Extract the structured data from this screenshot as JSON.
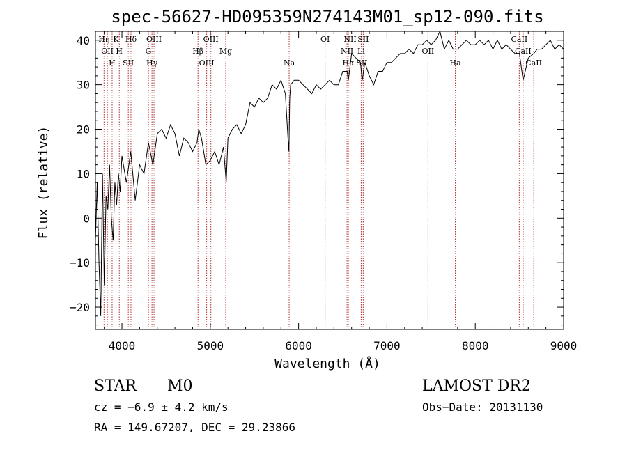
{
  "chart_data": {
    "type": "line",
    "title": "spec-56627-HD095359N274143M01_sp12-090.fits",
    "xlabel": "Wavelength (Å)",
    "ylabel": "Flux (relative)",
    "xlim": [
      3700,
      9000
    ],
    "ylim": [
      -25,
      42
    ],
    "x_ticks": [
      4000,
      5000,
      6000,
      7000,
      8000,
      9000
    ],
    "y_ticks": [
      -20,
      -10,
      0,
      10,
      20,
      30,
      40
    ],
    "x_tick_labels": [
      "4000",
      "5000",
      "6000",
      "7000",
      "8000",
      "9000"
    ],
    "y_tick_labels": [
      "−20",
      "−10",
      "0",
      "10",
      "20",
      "30",
      "40"
    ],
    "grid": false,
    "line_color": "#000000",
    "marker_color": "#b03030",
    "series": [
      {
        "x": [
          3700,
          3720,
          3740,
          3760,
          3780,
          3800,
          3820,
          3840,
          3860,
          3880,
          3900,
          3920,
          3940,
          3960,
          3980,
          4000,
          4050,
          4100,
          4150,
          4200,
          4250,
          4300,
          4350,
          4400,
          4450,
          4500,
          4550,
          4600,
          4650,
          4700,
          4750,
          4800,
          4850,
          4870,
          4900,
          4950,
          5000,
          5050,
          5100,
          5150,
          5180,
          5200,
          5250,
          5300,
          5350,
          5400,
          5450,
          5500,
          5550,
          5600,
          5650,
          5700,
          5750,
          5800,
          5850,
          5880,
          5890,
          5900,
          5910,
          5950,
          6000,
          6050,
          6100,
          6150,
          6200,
          6250,
          6300,
          6350,
          6400,
          6450,
          6500,
          6550,
          6563,
          6600,
          6650,
          6700,
          6720,
          6750,
          6800,
          6850,
          6900,
          6950,
          7000,
          7050,
          7100,
          7150,
          7200,
          7250,
          7300,
          7350,
          7400,
          7450,
          7500,
          7550,
          7600,
          7650,
          7700,
          7750,
          7800,
          7850,
          7900,
          7950,
          8000,
          8050,
          8100,
          8150,
          8200,
          8250,
          8300,
          8350,
          8400,
          8450,
          8500,
          8542,
          8600,
          8662,
          8700,
          8750,
          8800,
          8850,
          8900,
          8950,
          9000
        ],
        "y": [
          -5,
          8,
          -10,
          -22,
          10,
          -15,
          5,
          2,
          12,
          0,
          -5,
          8,
          3,
          10,
          6,
          14,
          8,
          15,
          4,
          12,
          10,
          17,
          12,
          19,
          20,
          18,
          21,
          19,
          14,
          18,
          17,
          15,
          17,
          20,
          18,
          12,
          13,
          15,
          12,
          16,
          8,
          18,
          20,
          21,
          19,
          21,
          26,
          25,
          27,
          26,
          27,
          30,
          29,
          31,
          28,
          18,
          15,
          27,
          30,
          31,
          31,
          30,
          29,
          28,
          30,
          29,
          30,
          31,
          30,
          30,
          33,
          33,
          31,
          37,
          36,
          35,
          31,
          35,
          32,
          30,
          33,
          33,
          35,
          35,
          36,
          37,
          37,
          38,
          37,
          39,
          39,
          40,
          39,
          40,
          42,
          38,
          40,
          38,
          38,
          39,
          40,
          39,
          39,
          40,
          39,
          40,
          38,
          40,
          38,
          39,
          38,
          37,
          37,
          31,
          36,
          37,
          38,
          38,
          39,
          40,
          38,
          39,
          38
        ]
      }
    ],
    "line_markers": [
      {
        "x": 3797,
        "label": "Hη"
      },
      {
        "x": 3835,
        "label": "OII"
      },
      {
        "x": 3889,
        "label": "H"
      },
      {
        "x": 3933,
        "label": "K"
      },
      {
        "x": 3970,
        "label": "H"
      },
      {
        "x": 4072,
        "label": "SII"
      },
      {
        "x": 4102,
        "label": "Hδ"
      },
      {
        "x": 4300,
        "label": "G"
      },
      {
        "x": 4340,
        "label": "Hγ"
      },
      {
        "x": 4363,
        "label": "OIII"
      },
      {
        "x": 4861,
        "label": "Hβ"
      },
      {
        "x": 4959,
        "label": "OIII"
      },
      {
        "x": 5007,
        "label": "OIII"
      },
      {
        "x": 5175,
        "label": "Mg"
      },
      {
        "x": 5893,
        "label": "Na"
      },
      {
        "x": 6300,
        "label": "OI"
      },
      {
        "x": 6548,
        "label": "NII"
      },
      {
        "x": 6563,
        "label": "Hα"
      },
      {
        "x": 6583,
        "label": "NII"
      },
      {
        "x": 6708,
        "label": "Li"
      },
      {
        "x": 6716,
        "label": "SII"
      },
      {
        "x": 6731,
        "label": "SII"
      },
      {
        "x": 7465,
        "label": "OII"
      },
      {
        "x": 7774,
        "label": "Ha"
      },
      {
        "x": 8498,
        "label": "CaII"
      },
      {
        "x": 8542,
        "label": "CaII"
      },
      {
        "x": 8662,
        "label": "CaII"
      }
    ]
  },
  "info": {
    "object_type": "STAR",
    "subclass": "M0",
    "survey": "LAMOST DR2",
    "cz": "cz = −6.9 ± 4.2 km/s",
    "obs_date": "Obs−Date: 20131130",
    "coords": "RA = 149.67207, DEC =  29.23866"
  }
}
